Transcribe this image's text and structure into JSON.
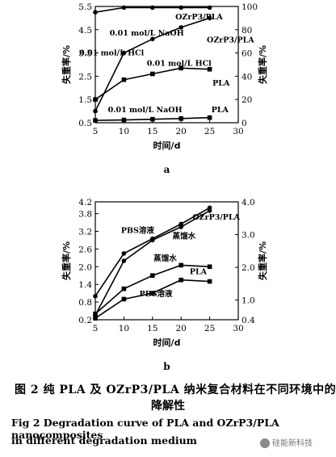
{
  "chart_data": [
    {
      "type": "line",
      "panel_label": "a",
      "xlabel": "时间/d",
      "ylabel_left": "失重率/%",
      "ylabel_right": "失重率/%",
      "x_ticks": [
        "5",
        "10",
        "15",
        "20",
        "25",
        "30"
      ],
      "y_left_ticks": [
        "0.5",
        "1.5",
        "2.5",
        "3.5",
        "4.5",
        "5.5"
      ],
      "y_right_ticks": [
        "0",
        "20",
        "40",
        "60",
        "80",
        "100"
      ],
      "xlim": [
        5,
        30
      ],
      "ylim_left": [
        0.5,
        5.5
      ],
      "ylim_right": [
        0,
        100
      ],
      "series": [
        {
          "axis": "right",
          "marker": "circle",
          "x": [
            5,
            10,
            15,
            20,
            25
          ],
          "y": [
            95,
            99,
            99,
            99,
            99
          ]
        },
        {
          "axis": "right",
          "marker": "circle",
          "x": [
            5,
            10,
            15,
            20,
            25
          ],
          "y": [
            10,
            60,
            72,
            82,
            90
          ]
        },
        {
          "axis": "right",
          "marker": "square",
          "x": [
            5,
            10,
            15,
            20,
            25
          ],
          "y": [
            20,
            37,
            42,
            47,
            46
          ]
        },
        {
          "axis": "left",
          "marker": "square",
          "x": [
            5,
            10,
            15,
            20,
            25
          ],
          "y": [
            0.6,
            0.62,
            0.65,
            0.68,
            0.72
          ]
        }
      ],
      "annotations": [
        {
          "text": "OZrP3/PLA",
          "x": 19,
          "y": 4.95
        },
        {
          "text": "0.01 mol/L NaOH",
          "x": 7.5,
          "y": 4.25
        },
        {
          "text": "OZrP3/PLA",
          "x": 24.5,
          "y": 3.95
        },
        {
          "text": "0.01 mol/L HCl",
          "x": 2.2,
          "y": 3.4
        },
        {
          "text": "0.01 mol/L HCl",
          "x": 14,
          "y": 2.95
        },
        {
          "text": "PLA",
          "x": 25.5,
          "y": 2.1
        },
        {
          "text": "0.01 mol/L NaOH",
          "x": 7.2,
          "y": 0.95
        },
        {
          "text": "PLA",
          "x": 25.3,
          "y": 0.95
        }
      ]
    },
    {
      "type": "line",
      "panel_label": "b",
      "xlabel": "时间/d",
      "ylabel_left": "失重率/%",
      "ylabel_right": "失重率/%",
      "x_ticks": [
        "5",
        "10",
        "15",
        "20",
        "25",
        "30"
      ],
      "y_left_ticks": [
        "0.2",
        "0.8",
        "1.4",
        "2.0",
        "2.6",
        "3.2",
        "3.8",
        "4.2"
      ],
      "y_right_ticks": [
        "0.4",
        "1.0",
        "2.0",
        "3.0",
        "4.0"
      ],
      "xlim": [
        5,
        30
      ],
      "ylim_left": [
        0.2,
        4.2
      ],
      "ylim_right": [
        0.4,
        4.0
      ],
      "series": [
        {
          "axis": "left",
          "marker": "circle",
          "x": [
            5,
            10,
            15,
            20,
            25
          ],
          "y": [
            1.0,
            2.45,
            2.95,
            3.45,
            4.0
          ]
        },
        {
          "axis": "left",
          "marker": "circle",
          "x": [
            5,
            10,
            15,
            20,
            25
          ],
          "y": [
            0.35,
            2.2,
            2.9,
            3.35,
            3.9
          ]
        },
        {
          "axis": "left",
          "marker": "square",
          "x": [
            5,
            10,
            15,
            20,
            25
          ],
          "y": [
            0.4,
            1.25,
            1.7,
            2.05,
            2.0
          ]
        },
        {
          "axis": "left",
          "marker": "square",
          "x": [
            5,
            10,
            15,
            20,
            25
          ],
          "y": [
            0.25,
            0.9,
            1.1,
            1.55,
            1.5
          ]
        }
      ],
      "annotations": [
        {
          "text": "OZrP3/PLA",
          "x": 22,
          "y": 3.6
        },
        {
          "text": "PBS溶液",
          "x": 9.5,
          "y": 3.15
        },
        {
          "text": "蒸馏水",
          "x": 18.5,
          "y": 2.95
        },
        {
          "text": "蒸馏水",
          "x": 15.2,
          "y": 2.2
        },
        {
          "text": "PLA",
          "x": 21.5,
          "y": 1.75
        },
        {
          "text": "PBS溶液",
          "x": 12.7,
          "y": 1.0
        }
      ]
    }
  ],
  "caption": {
    "zh_line1": "图 2   纯 PLA 及 OZrP3/PLA 纳米复合材料在不同环境中的",
    "zh_line2": "降解性",
    "en_line1": "Fig 2   Degradation curve of PLA and OZrP3/PLA nanocomposites",
    "en_line2": "in different degradation medium"
  },
  "watermark": "硅能新科技"
}
